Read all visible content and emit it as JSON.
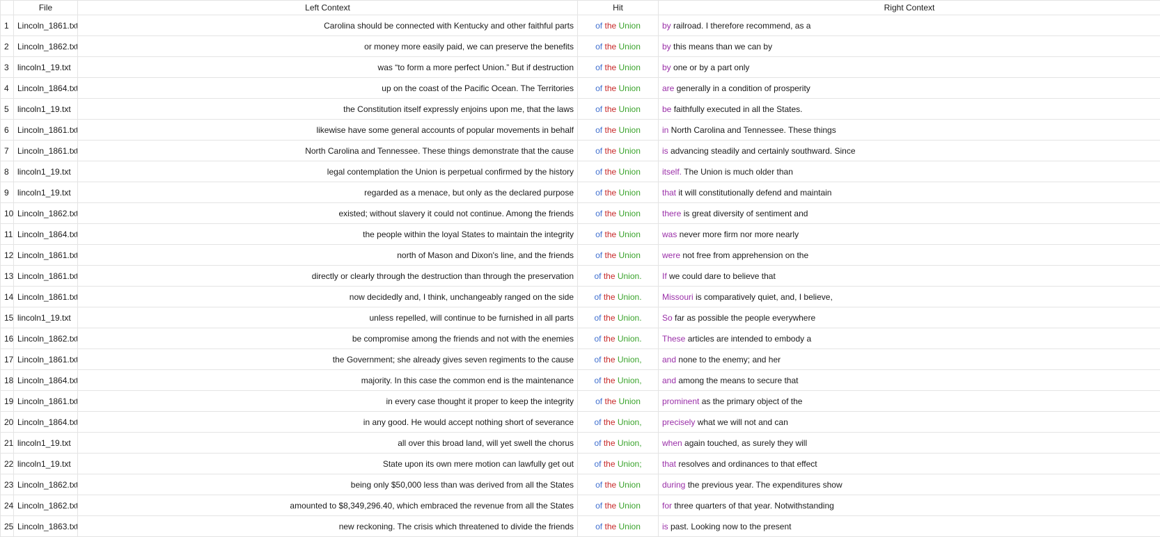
{
  "columns": {
    "file": "File",
    "left": "Left Context",
    "hit": "Hit",
    "right": "Right Context"
  },
  "colors": {
    "hit_of": "#3f6fcf",
    "hit_the": "#c62828",
    "hit_union": "#3aa32c",
    "right_first_word": "#9a2fa8"
  },
  "rows": [
    {
      "n": "1",
      "file": "Lincoln_1861.txt",
      "left": "Carolina should be connected with Kentucky and other faithful parts",
      "hit": [
        "of",
        "the",
        "Union"
      ],
      "right_first": "by",
      "right_rest": " railroad. I therefore recommend, as a"
    },
    {
      "n": "2",
      "file": "Lincoln_1862.txt",
      "left": "or money more easily paid, we can preserve the benefits",
      "hit": [
        "of",
        "the",
        "Union"
      ],
      "right_first": "by",
      "right_rest": " this means than we can by"
    },
    {
      "n": "3",
      "file": "lincoln1_19.txt",
      "left": "was “to form a more perfect Union.” But if destruction",
      "hit": [
        "of",
        "the",
        "Union"
      ],
      "right_first": "by",
      "right_rest": " one or by a part only"
    },
    {
      "n": "4",
      "file": "Lincoln_1864.txt",
      "left": "up on the coast of the Pacific Ocean. The Territories",
      "hit": [
        "of",
        "the",
        "Union"
      ],
      "right_first": "are",
      "right_rest": " generally in a condition of prosperity"
    },
    {
      "n": "5",
      "file": "lincoln1_19.txt",
      "left": "the Constitution itself expressly enjoins upon me, that the laws",
      "hit": [
        "of",
        "the",
        "Union"
      ],
      "right_first": "be",
      "right_rest": " faithfully executed in all the States."
    },
    {
      "n": "6",
      "file": "Lincoln_1861.txt",
      "left": "likewise have some general accounts of popular movements in behalf",
      "hit": [
        "of",
        "the",
        "Union"
      ],
      "right_first": "in",
      "right_rest": " North Carolina and Tennessee. These things"
    },
    {
      "n": "7",
      "file": "Lincoln_1861.txt",
      "left": "North Carolina and Tennessee. These things demonstrate that the cause",
      "hit": [
        "of",
        "the",
        "Union"
      ],
      "right_first": "is",
      "right_rest": " advancing steadily and certainly southward. Since"
    },
    {
      "n": "8",
      "file": "lincoln1_19.txt",
      "left": "legal contemplation the Union is perpetual confirmed by the history",
      "hit": [
        "of",
        "the",
        "Union"
      ],
      "right_first": "itself.",
      "right_rest": " The Union is much older than"
    },
    {
      "n": "9",
      "file": "lincoln1_19.txt",
      "left": "regarded as a menace, but only as the declared purpose",
      "hit": [
        "of",
        "the",
        "Union"
      ],
      "right_first": "that",
      "right_rest": " it will constitutionally defend and maintain"
    },
    {
      "n": "10",
      "file": "Lincoln_1862.txt",
      "left": "existed; without slavery it could not continue. Among the friends",
      "hit": [
        "of",
        "the",
        "Union"
      ],
      "right_first": "there",
      "right_rest": " is great diversity of sentiment and"
    },
    {
      "n": "11",
      "file": "Lincoln_1864.txt",
      "left": "the people within the loyal States to maintain the integrity",
      "hit": [
        "of",
        "the",
        "Union"
      ],
      "right_first": "was",
      "right_rest": " never more firm nor more nearly"
    },
    {
      "n": "12",
      "file": "Lincoln_1861.txt",
      "left": "north of Mason and Dixon's line, and the friends",
      "hit": [
        "of",
        "the",
        "Union"
      ],
      "right_first": "were",
      "right_rest": " not free from apprehension on the"
    },
    {
      "n": "13",
      "file": "Lincoln_1861.txt",
      "left": "directly or clearly through the destruction than through the preservation",
      "hit": [
        "of",
        "the",
        "Union."
      ],
      "right_first": "If",
      "right_rest": " we could dare to believe that"
    },
    {
      "n": "14",
      "file": "Lincoln_1861.txt",
      "left": "now decidedly and, I think, unchangeably ranged on the side",
      "hit": [
        "of",
        "the",
        "Union."
      ],
      "right_first": "Missouri",
      "right_rest": " is comparatively quiet, and, I believe,"
    },
    {
      "n": "15",
      "file": "lincoln1_19.txt",
      "left": "unless repelled, will continue to be furnished in all parts",
      "hit": [
        "of",
        "the",
        "Union."
      ],
      "right_first": "So",
      "right_rest": " far as possible the people everywhere"
    },
    {
      "n": "16",
      "file": "Lincoln_1862.txt",
      "left": "be compromise among the friends and not with the enemies",
      "hit": [
        "of",
        "the",
        "Union."
      ],
      "right_first": "These",
      "right_rest": " articles are intended to embody a"
    },
    {
      "n": "17",
      "file": "Lincoln_1861.txt",
      "left": "the Government; she already gives seven regiments to the cause",
      "hit": [
        "of",
        "the",
        "Union,"
      ],
      "right_first": "and",
      "right_rest": " none to the enemy; and her"
    },
    {
      "n": "18",
      "file": "Lincoln_1864.txt",
      "left": "majority. In this case the common end is the maintenance",
      "hit": [
        "of",
        "the",
        "Union,"
      ],
      "right_first": "and",
      "right_rest": " among the means to secure that"
    },
    {
      "n": "19",
      "file": "Lincoln_1861.txt",
      "left": "in every case thought it proper to keep the integrity",
      "hit": [
        "of",
        "the",
        "Union"
      ],
      "right_first": "prominent",
      "right_rest": " as the primary object of the"
    },
    {
      "n": "20",
      "file": "Lincoln_1864.txt",
      "left": "in any good. He would accept nothing short of severance",
      "hit": [
        "of",
        "the",
        "Union,"
      ],
      "right_first": "precisely",
      "right_rest": " what we will not and can"
    },
    {
      "n": "21",
      "file": "lincoln1_19.txt",
      "left": "all over this broad land, will yet swell the chorus",
      "hit": [
        "of",
        "the",
        "Union,"
      ],
      "right_first": "when",
      "right_rest": " again touched, as surely they will"
    },
    {
      "n": "22",
      "file": "lincoln1_19.txt",
      "left": "State upon its own mere motion can lawfully get out",
      "hit": [
        "of",
        "the",
        "Union;"
      ],
      "right_first": "that",
      "right_rest": " resolves and ordinances to that effect"
    },
    {
      "n": "23",
      "file": "Lincoln_1862.txt",
      "left": "being only $50,000 less than was derived from all the States",
      "hit": [
        "of",
        "the",
        "Union"
      ],
      "right_first": "during",
      "right_rest": " the previous year. The expenditures show"
    },
    {
      "n": "24",
      "file": "Lincoln_1862.txt",
      "left": "amounted to $8,349,296.40, which embraced the revenue from all the States",
      "hit": [
        "of",
        "the",
        "Union"
      ],
      "right_first": "for",
      "right_rest": " three quarters of that year. Notwithstanding"
    },
    {
      "n": "25",
      "file": "Lincoln_1863.txt",
      "left": "new reckoning. The crisis which threatened to divide the friends",
      "hit": [
        "of",
        "the",
        "Union"
      ],
      "right_first": "is",
      "right_rest": " past. Looking now to the present"
    }
  ]
}
